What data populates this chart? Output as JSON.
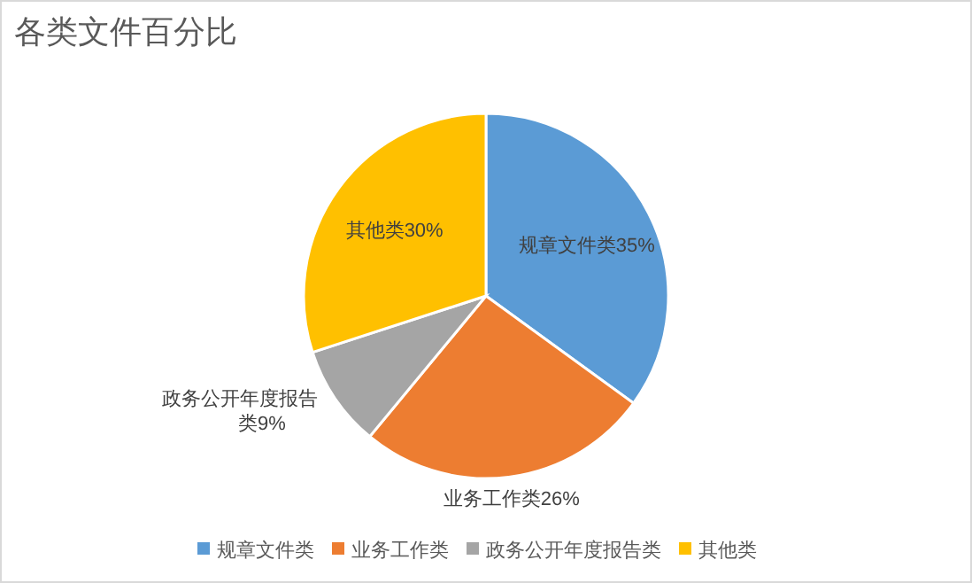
{
  "chart_data": {
    "type": "pie",
    "title": "各类文件百分比",
    "categories": [
      "规章文件类",
      "业务工作类",
      "政务公开年度报告类",
      "其他类"
    ],
    "values": [
      35,
      26,
      9,
      30
    ],
    "colors": [
      "#5b9bd5",
      "#ed7d31",
      "#a5a5a5",
      "#ffc000"
    ],
    "value_labels": [
      "规章文件类35%",
      "业务工作类26%",
      "政务公开年度报告类9%",
      "其他类30%"
    ],
    "legend": "bottom"
  }
}
